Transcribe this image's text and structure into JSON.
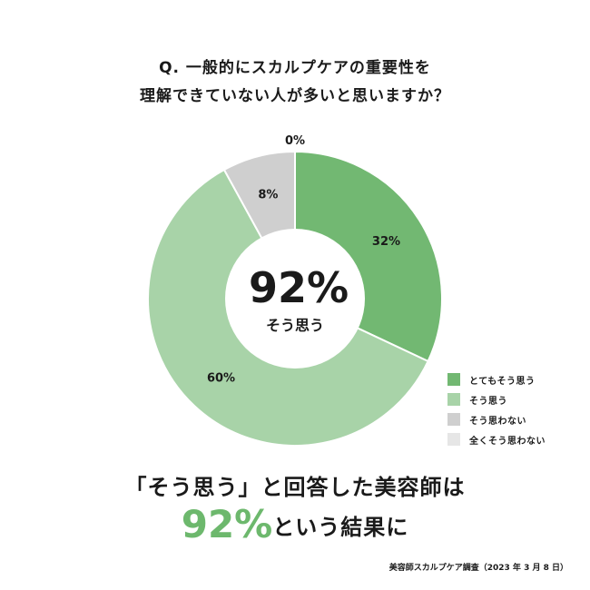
{
  "question": {
    "line1": "Q. 一般的にスカルプケアの重要性を",
    "line2": "理解できていない人が多いと思いますか？"
  },
  "chart_data": {
    "type": "pie",
    "donut": true,
    "categories": [
      "とてもそう思う",
      "そう思う",
      "そう思わない",
      "全くそう思わない"
    ],
    "values": [
      32,
      60,
      8,
      0
    ],
    "value_labels": [
      "32%",
      "60%",
      "8%",
      "0%"
    ],
    "colors": [
      "#72b872",
      "#a8d3a8",
      "#cfcfcf",
      "#e6e6e6"
    ],
    "center_value": "92%",
    "center_label": "そう思う",
    "legend_placement": "right-bottom"
  },
  "result": {
    "line1": "「そう思う」と回答した美容師は",
    "pct": "92%",
    "line2_rest": "という結果に",
    "accent_color": "#6db86d"
  },
  "source": "美容師スカルプケア調査（2023 年 3 月 8 日）"
}
